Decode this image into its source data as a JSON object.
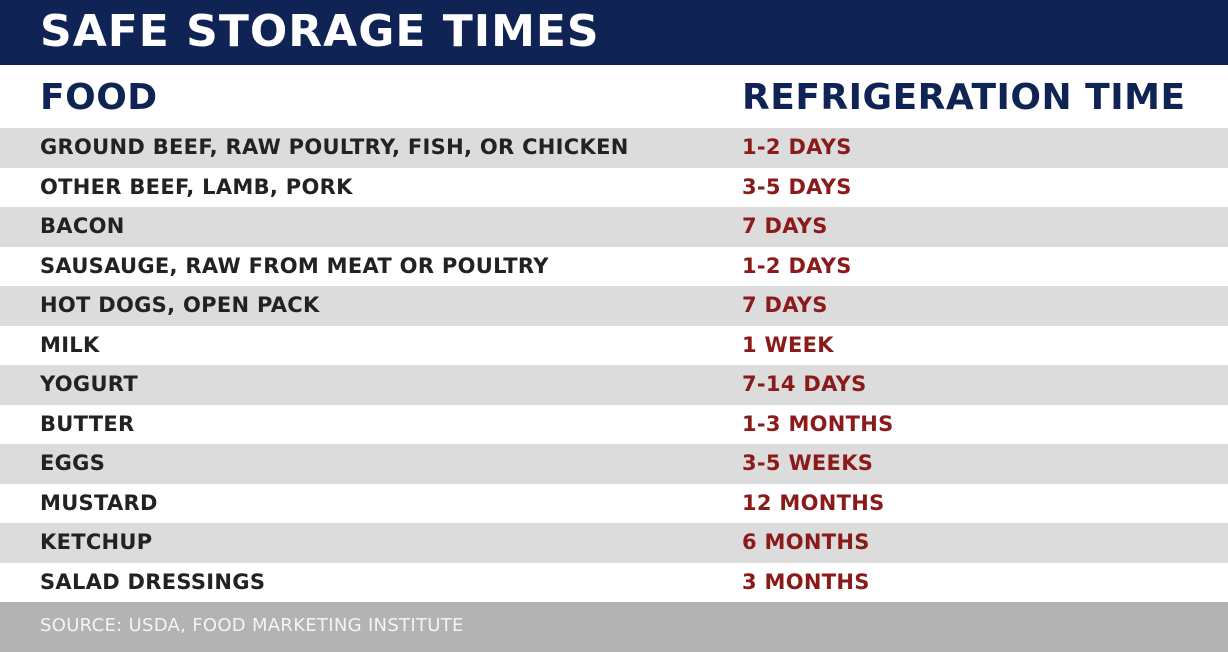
{
  "title": "SAFE STORAGE TIMES",
  "headers": {
    "food": "FOOD",
    "time": "REFRIGERATION TIME"
  },
  "rows": [
    {
      "food": "GROUND BEEF, RAW POULTRY, FISH, OR CHICKEN",
      "time": "1-2 DAYS"
    },
    {
      "food": "OTHER BEEF, LAMB, PORK",
      "time": "3-5 DAYS"
    },
    {
      "food": "BACON",
      "time": "7 DAYS"
    },
    {
      "food": "SAUSAUGE, RAW FROM MEAT OR POULTRY",
      "time": "1-2 DAYS"
    },
    {
      "food": "HOT DOGS, OPEN PACK",
      "time": "7 DAYS"
    },
    {
      "food": "MILK",
      "time": "1 WEEK"
    },
    {
      "food": "YOGURT",
      "time": "7-14 DAYS"
    },
    {
      "food": "BUTTER",
      "time": "1-3 MONTHS"
    },
    {
      "food": "EGGS",
      "time": "3-5 WEEKS"
    },
    {
      "food": "MUSTARD",
      "time": "12 MONTHS"
    },
    {
      "food": "KETCHUP",
      "time": "6 MONTHS"
    },
    {
      "food": "SALAD DRESSINGS",
      "time": "3 MONTHS"
    }
  ],
  "source": "SOURCE: USDA, FOOD MARKETING INSTITUTE",
  "colors": {
    "banner": "#0f2355",
    "header_text": "#0f2355",
    "time_text": "#8b1a1a",
    "stripe": "#dcdcdc",
    "footer": "#b3b3b3"
  }
}
